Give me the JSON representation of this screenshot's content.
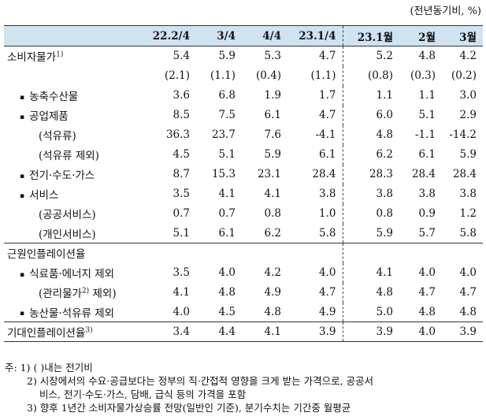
{
  "unit": "(전년동기비, %)",
  "columns": [
    "22.2/4",
    "3/4",
    "4/4",
    "23.1/4",
    "23.1월",
    "2월",
    "3월"
  ],
  "rows": [
    {
      "label": "소비자물가",
      "sup": "1)",
      "values": [
        "5.4",
        "5.9",
        "5.3",
        "4.7",
        "5.2",
        "4.8",
        "4.2"
      ]
    },
    {
      "label": "",
      "sup": "",
      "values": [
        "(2.1)",
        "(1.1)",
        "(0.4)",
        "(1.1)",
        "(0.8)",
        "(0.3)",
        "(0.2)"
      ]
    },
    {
      "label": "농축수산물",
      "sup": "",
      "values": [
        "3.6",
        "6.8",
        "1.9",
        "1.7",
        "1.1",
        "1.1",
        "3.0"
      ]
    },
    {
      "label": "공업제품",
      "sup": "",
      "values": [
        "8.5",
        "7.5",
        "6.1",
        "4.7",
        "6.0",
        "5.1",
        "2.9"
      ]
    },
    {
      "label": "(석유류)",
      "sup": "",
      "values": [
        "36.3",
        "23.7",
        "7.6",
        "-4.1",
        "4.8",
        "-1.1",
        "-14.2"
      ]
    },
    {
      "label": "(석유류 제외)",
      "sup": "",
      "values": [
        "4.5",
        "5.1",
        "5.9",
        "6.1",
        "6.2",
        "6.1",
        "5.9"
      ]
    },
    {
      "label": "전기·수도·가스",
      "sup": "",
      "values": [
        "8.7",
        "15.3",
        "23.1",
        "28.4",
        "28.3",
        "28.4",
        "28.4"
      ]
    },
    {
      "label": "서비스",
      "sup": "",
      "values": [
        "3.5",
        "4.1",
        "4.1",
        "3.8",
        "3.8",
        "3.8",
        "3.8"
      ]
    },
    {
      "label": "(공공서비스)",
      "sup": "",
      "values": [
        "0.7",
        "0.7",
        "0.8",
        "1.0",
        "0.8",
        "0.9",
        "1.2"
      ]
    },
    {
      "label": "(개인서비스)",
      "sup": "",
      "values": [
        "5.1",
        "6.1",
        "6.2",
        "5.8",
        "5.9",
        "5.7",
        "5.8"
      ]
    },
    {
      "label": "근원인플레이션율",
      "sup": "",
      "values": [
        "",
        "",
        "",
        "",
        "",
        "",
        ""
      ]
    },
    {
      "label": "식료품·에너지 제외",
      "sup": "",
      "values": [
        "3.5",
        "4.0",
        "4.2",
        "4.0",
        "4.1",
        "4.0",
        "4.0"
      ]
    },
    {
      "label": "(관리물가",
      "sup": "2)",
      "label_after": " 제외)",
      "values": [
        "4.1",
        "4.8",
        "4.9",
        "4.7",
        "4.8",
        "4.7",
        "4.7"
      ]
    },
    {
      "label": "농산물·석유류 제외",
      "sup": "",
      "values": [
        "4.0",
        "4.5",
        "4.8",
        "4.9",
        "5.0",
        "4.8",
        "4.8"
      ]
    },
    {
      "label": "기대인플레이션율",
      "sup": "3)",
      "values": [
        "3.4",
        "4.4",
        "4.1",
        "3.9",
        "3.9",
        "4.0",
        "3.9"
      ]
    }
  ],
  "notes": [
    "주: 1) (  )내는 전기비",
    "2) 시장에서의 수요·공급보다는 정부의 직·간접적 영향을 크게 받는 가격으로, 공공서",
    "비스, 전기·수도·가스, 담배, 급식 등의 가격을 포함",
    "3) 향후 1년간 소비자물가상승률 전망(일반인 기준), 분기수치는 기간중 월평균"
  ]
}
